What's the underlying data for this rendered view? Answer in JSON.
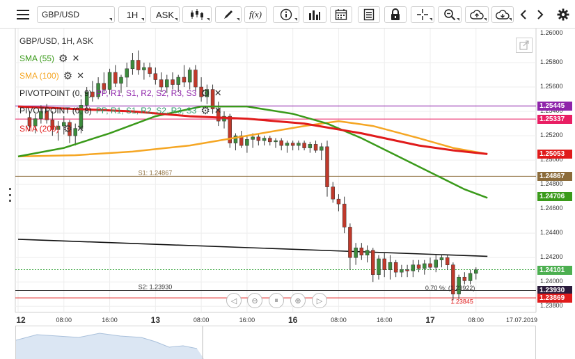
{
  "toolbar": {
    "symbol": "GBP/USD",
    "timeframe": "1H",
    "price_type": "ASK",
    "fx_label": "f(x)",
    "items": [
      {
        "name": "menu-icon"
      },
      {
        "name": "symbol-select"
      },
      {
        "name": "timeframe-select"
      },
      {
        "name": "price-type-select"
      },
      {
        "name": "candlestick-type-icon"
      },
      {
        "name": "drawing-tool-icon"
      },
      {
        "name": "indicators-fx-icon"
      },
      {
        "name": "info-icon"
      },
      {
        "name": "volume-bars-icon"
      },
      {
        "name": "calendar-icon"
      },
      {
        "name": "news-icon"
      },
      {
        "name": "lock-icon"
      },
      {
        "name": "crosshair-icon"
      },
      {
        "name": "zoom-icon"
      },
      {
        "name": "cloud-upload-icon"
      },
      {
        "name": "cloud-download-icon"
      },
      {
        "name": "chevron-left-icon"
      },
      {
        "name": "chevron-right-icon"
      },
      {
        "name": "gear-icon"
      }
    ]
  },
  "legend": {
    "header": "GBP/USD, 1H, ASK",
    "sma55": "SMA (55)",
    "sma100": "SMA (100)",
    "pivot1_name": "PIVOTPOINT (0, 9)",
    "pivot1_levels": "PP, R1, S1, R2, S2, R3, S3",
    "pivot2_name": "PIVOTPOINT (0, 8)",
    "pivot2_levels": "PP, R1, S1, R2, S2, R3, S3",
    "pivot2_overlap": "1.25337",
    "sma200": "SMA (200)"
  },
  "colors": {
    "sma55": "#3a9a1a",
    "sma100": "#f5a623",
    "sma200": "#e01b1b",
    "pivot_pp": "#8e24aa",
    "pivot_r1": "#e91e63",
    "pivot_s1_line": "#8b6b3a",
    "candle_up": "#3c8b3c",
    "candle_down": "#c0392b",
    "trendline": "#111111",
    "last_price": "#4caf50"
  },
  "chart_data": {
    "type": "candlestick",
    "instrument": "GBP/USD",
    "timeframe": "1H",
    "ylim": [
      1.2375,
      1.2608
    ],
    "price_axis_ticks": [
      "1.25800",
      "1.25600",
      "1.25400",
      "1.25200",
      "1.25000",
      "1.24800",
      "1.24600",
      "1.24400",
      "1.24200",
      "1.24000",
      "1.23800"
    ],
    "top_tick": "1.26000",
    "time_labels": [
      {
        "label": "12",
        "day": true,
        "x": 0
      },
      {
        "label": "08:00",
        "day": false,
        "x": 8
      },
      {
        "label": "16:00",
        "day": false,
        "x": 16
      },
      {
        "label": "13",
        "day": true,
        "x": 24
      },
      {
        "label": "08:00",
        "day": false,
        "x": 32
      },
      {
        "label": "16:00",
        "day": false,
        "x": 40
      },
      {
        "label": "16",
        "day": true,
        "x": 48
      },
      {
        "label": "08:00",
        "day": false,
        "x": 56
      },
      {
        "label": "16:00",
        "day": false,
        "x": 64
      },
      {
        "label": "17",
        "day": true,
        "x": 72
      },
      {
        "label": "08:00",
        "day": false,
        "x": 80
      },
      {
        "label": "17.07.2019",
        "day": false,
        "x": 88
      }
    ],
    "x_range": [
      0,
      90
    ],
    "candles": [
      {
        "x": 2,
        "o": 1.2535,
        "h": 1.254,
        "l": 1.2524,
        "c": 1.2528
      },
      {
        "x": 3,
        "o": 1.2528,
        "h": 1.2538,
        "l": 1.2522,
        "c": 1.2534
      },
      {
        "x": 4,
        "o": 1.2534,
        "h": 1.2545,
        "l": 1.253,
        "c": 1.254
      },
      {
        "x": 5,
        "o": 1.254,
        "h": 1.2546,
        "l": 1.253,
        "c": 1.2533
      },
      {
        "x": 6,
        "o": 1.2533,
        "h": 1.254,
        "l": 1.252,
        "c": 1.2525
      },
      {
        "x": 7,
        "o": 1.2525,
        "h": 1.2532,
        "l": 1.2516,
        "c": 1.2528
      },
      {
        "x": 8,
        "o": 1.2528,
        "h": 1.2536,
        "l": 1.2521,
        "c": 1.2531
      },
      {
        "x": 9,
        "o": 1.2531,
        "h": 1.2533,
        "l": 1.2514,
        "c": 1.252
      },
      {
        "x": 10,
        "o": 1.252,
        "h": 1.253,
        "l": 1.2512,
        "c": 1.2526
      },
      {
        "x": 11,
        "o": 1.2526,
        "h": 1.255,
        "l": 1.2522,
        "c": 1.2545
      },
      {
        "x": 12,
        "o": 1.2545,
        "h": 1.256,
        "l": 1.254,
        "c": 1.2556
      },
      {
        "x": 13,
        "o": 1.2556,
        "h": 1.2565,
        "l": 1.2548,
        "c": 1.2552
      },
      {
        "x": 14,
        "o": 1.2552,
        "h": 1.2568,
        "l": 1.255,
        "c": 1.2563
      },
      {
        "x": 15,
        "o": 1.2563,
        "h": 1.2572,
        "l": 1.2555,
        "c": 1.2558
      },
      {
        "x": 16,
        "o": 1.2558,
        "h": 1.2575,
        "l": 1.2554,
        "c": 1.2572
      },
      {
        "x": 17,
        "o": 1.2572,
        "h": 1.2578,
        "l": 1.256,
        "c": 1.2563
      },
      {
        "x": 18,
        "o": 1.2563,
        "h": 1.257,
        "l": 1.2555,
        "c": 1.2568
      },
      {
        "x": 19,
        "o": 1.2568,
        "h": 1.258,
        "l": 1.256,
        "c": 1.2575
      },
      {
        "x": 20,
        "o": 1.2575,
        "h": 1.2588,
        "l": 1.257,
        "c": 1.2582
      },
      {
        "x": 21,
        "o": 1.2582,
        "h": 1.259,
        "l": 1.257,
        "c": 1.2574
      },
      {
        "x": 22,
        "o": 1.2574,
        "h": 1.258,
        "l": 1.2566,
        "c": 1.2576
      },
      {
        "x": 23,
        "o": 1.2576,
        "h": 1.258,
        "l": 1.2568,
        "c": 1.2571
      },
      {
        "x": 24,
        "o": 1.2571,
        "h": 1.2576,
        "l": 1.2562,
        "c": 1.2566
      },
      {
        "x": 25,
        "o": 1.2566,
        "h": 1.2572,
        "l": 1.2556,
        "c": 1.256
      },
      {
        "x": 26,
        "o": 1.256,
        "h": 1.257,
        "l": 1.2555,
        "c": 1.2566
      },
      {
        "x": 27,
        "o": 1.2566,
        "h": 1.2572,
        "l": 1.2558,
        "c": 1.2562
      },
      {
        "x": 28,
        "o": 1.2562,
        "h": 1.257,
        "l": 1.2556,
        "c": 1.2568
      },
      {
        "x": 29,
        "o": 1.2568,
        "h": 1.2578,
        "l": 1.256,
        "c": 1.2564
      },
      {
        "x": 30,
        "o": 1.2564,
        "h": 1.2576,
        "l": 1.2558,
        "c": 1.2574
      },
      {
        "x": 31,
        "o": 1.2574,
        "h": 1.2578,
        "l": 1.2556,
        "c": 1.256
      },
      {
        "x": 32,
        "o": 1.256,
        "h": 1.2568,
        "l": 1.2548,
        "c": 1.2552
      },
      {
        "x": 33,
        "o": 1.2552,
        "h": 1.2562,
        "l": 1.2546,
        "c": 1.2558
      },
      {
        "x": 34,
        "o": 1.2558,
        "h": 1.2562,
        "l": 1.2538,
        "c": 1.2542
      },
      {
        "x": 35,
        "o": 1.2542,
        "h": 1.2548,
        "l": 1.2528,
        "c": 1.2532
      },
      {
        "x": 36,
        "o": 1.2532,
        "h": 1.254,
        "l": 1.2526,
        "c": 1.2536
      },
      {
        "x": 37,
        "o": 1.2536,
        "h": 1.2538,
        "l": 1.251,
        "c": 1.2514
      },
      {
        "x": 38,
        "o": 1.2514,
        "h": 1.2522,
        "l": 1.2508,
        "c": 1.252
      },
      {
        "x": 39,
        "o": 1.252,
        "h": 1.2524,
        "l": 1.251,
        "c": 1.2512
      },
      {
        "x": 40,
        "o": 1.2512,
        "h": 1.252,
        "l": 1.2506,
        "c": 1.2517
      },
      {
        "x": 41,
        "o": 1.2517,
        "h": 1.2522,
        "l": 1.251,
        "c": 1.2519
      },
      {
        "x": 42,
        "o": 1.2519,
        "h": 1.2521,
        "l": 1.2512,
        "c": 1.2516
      },
      {
        "x": 43,
        "o": 1.2516,
        "h": 1.252,
        "l": 1.2512,
        "c": 1.2518
      },
      {
        "x": 44,
        "o": 1.2518,
        "h": 1.252,
        "l": 1.2512,
        "c": 1.2515
      },
      {
        "x": 45,
        "o": 1.2515,
        "h": 1.2518,
        "l": 1.251,
        "c": 1.2516
      },
      {
        "x": 46,
        "o": 1.2516,
        "h": 1.2518,
        "l": 1.2508,
        "c": 1.2512
      },
      {
        "x": 47,
        "o": 1.2512,
        "h": 1.2516,
        "l": 1.2506,
        "c": 1.2514
      },
      {
        "x": 48,
        "o": 1.2514,
        "h": 1.2516,
        "l": 1.2508,
        "c": 1.2512
      },
      {
        "x": 49,
        "o": 1.2512,
        "h": 1.2516,
        "l": 1.2508,
        "c": 1.2514
      },
      {
        "x": 50,
        "o": 1.2514,
        "h": 1.2516,
        "l": 1.2508,
        "c": 1.251
      },
      {
        "x": 51,
        "o": 1.251,
        "h": 1.2515,
        "l": 1.2506,
        "c": 1.2513
      },
      {
        "x": 52,
        "o": 1.2513,
        "h": 1.2516,
        "l": 1.2506,
        "c": 1.2508
      },
      {
        "x": 53,
        "o": 1.2508,
        "h": 1.2514,
        "l": 1.25,
        "c": 1.2511
      },
      {
        "x": 54,
        "o": 1.2511,
        "h": 1.2516,
        "l": 1.247,
        "c": 1.2478
      },
      {
        "x": 55,
        "o": 1.2478,
        "h": 1.2482,
        "l": 1.2465,
        "c": 1.2468
      },
      {
        "x": 56,
        "o": 1.2468,
        "h": 1.2472,
        "l": 1.2458,
        "c": 1.2464
      },
      {
        "x": 57,
        "o": 1.2464,
        "h": 1.247,
        "l": 1.244,
        "c": 1.2445
      },
      {
        "x": 58,
        "o": 1.2445,
        "h": 1.2448,
        "l": 1.241,
        "c": 1.242
      },
      {
        "x": 59,
        "o": 1.242,
        "h": 1.2432,
        "l": 1.2414,
        "c": 1.2428
      },
      {
        "x": 60,
        "o": 1.2428,
        "h": 1.2432,
        "l": 1.2418,
        "c": 1.2422
      },
      {
        "x": 61,
        "o": 1.2422,
        "h": 1.243,
        "l": 1.2416,
        "c": 1.2426
      },
      {
        "x": 62,
        "o": 1.2426,
        "h": 1.2428,
        "l": 1.24,
        "c": 1.2406
      },
      {
        "x": 63,
        "o": 1.2406,
        "h": 1.2422,
        "l": 1.2402,
        "c": 1.2419
      },
      {
        "x": 64,
        "o": 1.2419,
        "h": 1.2424,
        "l": 1.2404,
        "c": 1.241
      },
      {
        "x": 65,
        "o": 1.241,
        "h": 1.2422,
        "l": 1.2402,
        "c": 1.2416
      },
      {
        "x": 66,
        "o": 1.2416,
        "h": 1.2418,
        "l": 1.2404,
        "c": 1.2408
      },
      {
        "x": 67,
        "o": 1.2408,
        "h": 1.2414,
        "l": 1.2404,
        "c": 1.241
      },
      {
        "x": 68,
        "o": 1.241,
        "h": 1.2414,
        "l": 1.2404,
        "c": 1.2409
      },
      {
        "x": 69,
        "o": 1.2409,
        "h": 1.2418,
        "l": 1.2404,
        "c": 1.2414
      },
      {
        "x": 70,
        "o": 1.2414,
        "h": 1.2418,
        "l": 1.2408,
        "c": 1.2411
      },
      {
        "x": 71,
        "o": 1.2411,
        "h": 1.2418,
        "l": 1.2406,
        "c": 1.2415
      },
      {
        "x": 72,
        "o": 1.2415,
        "h": 1.242,
        "l": 1.241,
        "c": 1.2412
      },
      {
        "x": 73,
        "o": 1.2412,
        "h": 1.2422,
        "l": 1.2408,
        "c": 1.2418
      },
      {
        "x": 74,
        "o": 1.2418,
        "h": 1.2422,
        "l": 1.2412,
        "c": 1.242
      },
      {
        "x": 75,
        "o": 1.242,
        "h": 1.2422,
        "l": 1.241,
        "c": 1.2414
      },
      {
        "x": 76,
        "o": 1.2414,
        "h": 1.2416,
        "l": 1.2385,
        "c": 1.239
      },
      {
        "x": 77,
        "o": 1.239,
        "h": 1.2406,
        "l": 1.2386,
        "c": 1.2404
      },
      {
        "x": 78,
        "o": 1.2404,
        "h": 1.2408,
        "l": 1.2398,
        "c": 1.2401
      },
      {
        "x": 79,
        "o": 1.2401,
        "h": 1.241,
        "l": 1.2398,
        "c": 1.2407
      },
      {
        "x": 80,
        "o": 1.2407,
        "h": 1.2412,
        "l": 1.2402,
        "c": 1.241
      }
    ],
    "sma55": [
      [
        0,
        1.2503
      ],
      [
        8,
        1.251
      ],
      [
        16,
        1.2522
      ],
      [
        24,
        1.2536
      ],
      [
        32,
        1.2544
      ],
      [
        40,
        1.2544
      ],
      [
        48,
        1.2538
      ],
      [
        54,
        1.253
      ],
      [
        60,
        1.2518
      ],
      [
        66,
        1.2504
      ],
      [
        72,
        1.249
      ],
      [
        78,
        1.2476
      ],
      [
        82,
        1.2469
      ]
    ],
    "sma100": [
      [
        0,
        1.2503
      ],
      [
        10,
        1.2504
      ],
      [
        20,
        1.2507
      ],
      [
        30,
        1.2512
      ],
      [
        40,
        1.252
      ],
      [
        50,
        1.2528
      ],
      [
        56,
        1.2532
      ],
      [
        62,
        1.2528
      ],
      [
        70,
        1.2518
      ],
      [
        76,
        1.251
      ],
      [
        82,
        1.2505
      ]
    ],
    "sma200": [
      [
        0,
        1.2544
      ],
      [
        10,
        1.2542
      ],
      [
        20,
        1.254
      ],
      [
        30,
        1.2536
      ],
      [
        40,
        1.2534
      ],
      [
        50,
        1.253
      ],
      [
        60,
        1.2522
      ],
      [
        70,
        1.2512
      ],
      [
        76,
        1.2508
      ],
      [
        82,
        1.2505
      ]
    ],
    "trendline": [
      [
        0,
        1.2435
      ],
      [
        82,
        1.2421
      ]
    ],
    "horizontal_levels": [
      {
        "name": "pp",
        "value": 1.25445,
        "label": "1.25445",
        "color": "#8e24aa",
        "style": "solid"
      },
      {
        "name": "r1",
        "value": 1.25337,
        "label": "1.25337",
        "color": "#e91e63",
        "style": "solid"
      },
      {
        "name": "s1",
        "value": 1.24867,
        "label": "1.24867",
        "color": "#8b6b3a",
        "style": "solid",
        "text": "S1: 1.24867",
        "text_x": 21
      },
      {
        "name": "s2",
        "value": 1.2393,
        "label": "1.23930",
        "color": "#333333",
        "style": "solid",
        "text": "S2: 1.23930",
        "text_x": 21
      },
      {
        "name": "low",
        "value": 1.23869,
        "label": "1.23869",
        "color": "#e01b1b",
        "style": "solid"
      }
    ],
    "last_price": {
      "value": 1.24101,
      "label": "1.24101"
    },
    "badges": [
      {
        "name": "pp-badge",
        "value": 1.25445,
        "label": "1.25445",
        "color": "#8e24aa"
      },
      {
        "name": "r1-badge",
        "value": 1.25337,
        "label": "1.25337",
        "color": "#e91e63"
      },
      {
        "name": "sma200-badge",
        "value": 1.25053,
        "label": "1.25053",
        "color": "#e01b1b"
      },
      {
        "name": "s1-badge",
        "value": 1.24867,
        "label": "1.24867",
        "color": "#8b6b3a"
      },
      {
        "name": "sma55-badge",
        "value": 1.24706,
        "label": "1.24706",
        "color": "#3a9a1a"
      },
      {
        "name": "last-price-badge",
        "value": 1.24101,
        "label": "1.24101",
        "color": "#4caf50"
      },
      {
        "name": "s2-badge",
        "value": 1.2393,
        "label": "1.23930",
        "color": "#2b1b3b"
      },
      {
        "name": "low-badge",
        "value": 1.23869,
        "label": "1.23869",
        "color": "#e01b1b"
      }
    ],
    "fib_label": {
      "text": "0.70 %: (1.23922)",
      "x": 76,
      "value": 1.23922
    },
    "low_marker": {
      "text": "1.23845",
      "x": 78,
      "value": 1.23845
    }
  }
}
